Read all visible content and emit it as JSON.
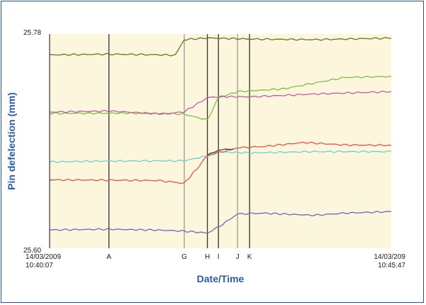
{
  "chart_data": {
    "type": "line",
    "xlabel": "Date/Time",
    "ylabel": "Pin defelection (mm)",
    "ylim": [
      25.6,
      25.78
    ],
    "y_tick_labels": [
      "25.78",
      "25.60"
    ],
    "x_start": {
      "date": "14/03/2009",
      "time": "10:40:07"
    },
    "x_end": {
      "date": "14/03/209",
      "time": "10:45:47"
    },
    "xlim": [
      "10:40:07",
      "10:45:47"
    ],
    "grid": false,
    "background": "#fbf6dc",
    "events": [
      {
        "label": "A",
        "time": "10:41:06",
        "color": "#333333"
      },
      {
        "label": "G",
        "time": "10:42:21",
        "color": "#9a9a9a"
      },
      {
        "label": "H",
        "time": "10:42:44",
        "color": "#333333"
      },
      {
        "label": "I",
        "time": "10:42:55",
        "color": "#333333"
      },
      {
        "label": "J",
        "time": "10:43:14",
        "color": "#9a9a9a"
      },
      {
        "label": "K",
        "time": "10:43:26",
        "color": "#333333"
      }
    ],
    "series": [
      {
        "color": "#5a7a2a",
        "x": [
          "10:40:07",
          "10:41:06",
          "10:41:55",
          "10:42:12",
          "10:42:21",
          "10:42:44",
          "10:43:26",
          "10:44:30",
          "10:45:47"
        ],
        "values": [
          25.7625,
          25.7631,
          25.7626,
          25.7622,
          25.7753,
          25.7767,
          25.7758,
          25.7753,
          25.7766
        ]
      },
      {
        "color": "#7ac043",
        "x": [
          "10:40:07",
          "10:41:06",
          "10:42:00",
          "10:42:21",
          "10:42:44",
          "10:42:55",
          "10:43:14",
          "10:44:00",
          "10:45:00",
          "10:45:47"
        ],
        "values": [
          25.7133,
          25.7135,
          25.7133,
          25.7126,
          25.7078,
          25.7264,
          25.7316,
          25.734,
          25.7435,
          25.7444
        ]
      },
      {
        "color": "#c75aa8",
        "x": [
          "10:40:07",
          "10:41:06",
          "10:42:00",
          "10:42:21",
          "10:42:44",
          "10:42:55",
          "10:43:26",
          "10:44:30",
          "10:45:47"
        ],
        "values": [
          25.7144,
          25.7153,
          25.7128,
          25.7147,
          25.7265,
          25.7274,
          25.7272,
          25.7296,
          25.7316
        ]
      },
      {
        "color": "#6ecfd0",
        "x": [
          "10:40:07",
          "10:41:06",
          "10:42:21",
          "10:42:44",
          "10:42:55",
          "10:43:26",
          "10:44:30",
          "10:45:47"
        ],
        "values": [
          25.6726,
          25.6733,
          25.6735,
          25.6777,
          25.6812,
          25.6801,
          25.6812,
          25.6812
        ]
      },
      {
        "color": "#e8524a",
        "x": [
          "10:40:07",
          "10:41:06",
          "10:41:55",
          "10:42:21",
          "10:42:33",
          "10:42:44",
          "10:43:14",
          "10:43:40",
          "10:44:20",
          "10:45:00",
          "10:45:47"
        ],
        "values": [
          25.6575,
          25.6572,
          25.6569,
          25.6546,
          25.6662,
          25.678,
          25.6844,
          25.6855,
          25.6889,
          25.6868,
          25.6865
        ]
      },
      {
        "color": "#444444",
        "x": [
          "10:42:44",
          "10:42:55",
          "10:43:10"
        ],
        "values": [
          25.678,
          25.6825,
          25.6835
        ]
      },
      {
        "color": "#6a6ab8",
        "x": [
          "10:40:07",
          "10:41:06",
          "10:42:00",
          "10:42:21",
          "10:42:44",
          "10:42:55",
          "10:43:14",
          "10:43:40",
          "10:44:30",
          "10:45:00",
          "10:45:47"
        ],
        "values": [
          25.6154,
          25.616,
          25.6152,
          25.6144,
          25.6128,
          25.6178,
          25.6288,
          25.6295,
          25.6277,
          25.6295,
          25.6308
        ]
      }
    ]
  }
}
